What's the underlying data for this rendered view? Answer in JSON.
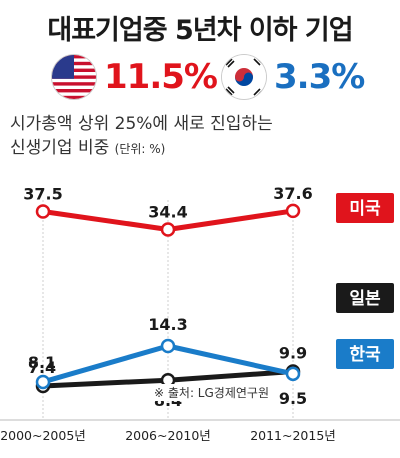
{
  "title": "대표기업중 5년차 이하 기업",
  "headline": {
    "us": {
      "flag": "us-flag-icon",
      "value": "11.5%",
      "color": "#e0141c"
    },
    "kr": {
      "flag": "korea-flag-icon",
      "value": "3.3%",
      "color": "#1a6fc0"
    }
  },
  "subtitle_line1": "시가총액 상위 25%에 새로 진입하는",
  "subtitle_line2": "신생기업 비중",
  "subtitle_unit": "(단위: %)",
  "source_note": "※ 출처: LG경제연구원",
  "chart_data": {
    "type": "line",
    "categories": [
      "2000~2005년",
      "2006~2010년",
      "2011~2015년"
    ],
    "ylim": [
      0,
      45
    ],
    "grid": false,
    "series": [
      {
        "name": "미국",
        "values": [
          37.5,
          34.4,
          37.6
        ],
        "labels": [
          "37.5",
          "34.4",
          "37.6"
        ],
        "color": "#e0141c"
      },
      {
        "name": "일본",
        "values": [
          7.4,
          8.4,
          9.9
        ],
        "labels": [
          "7.4",
          "8.4",
          "9.9"
        ],
        "color": "#1a1a1a"
      },
      {
        "name": "한국",
        "values": [
          8.1,
          14.3,
          9.5
        ],
        "labels": [
          "8.1",
          "14.3",
          "9.5"
        ],
        "color": "#1a7cc9"
      }
    ]
  }
}
